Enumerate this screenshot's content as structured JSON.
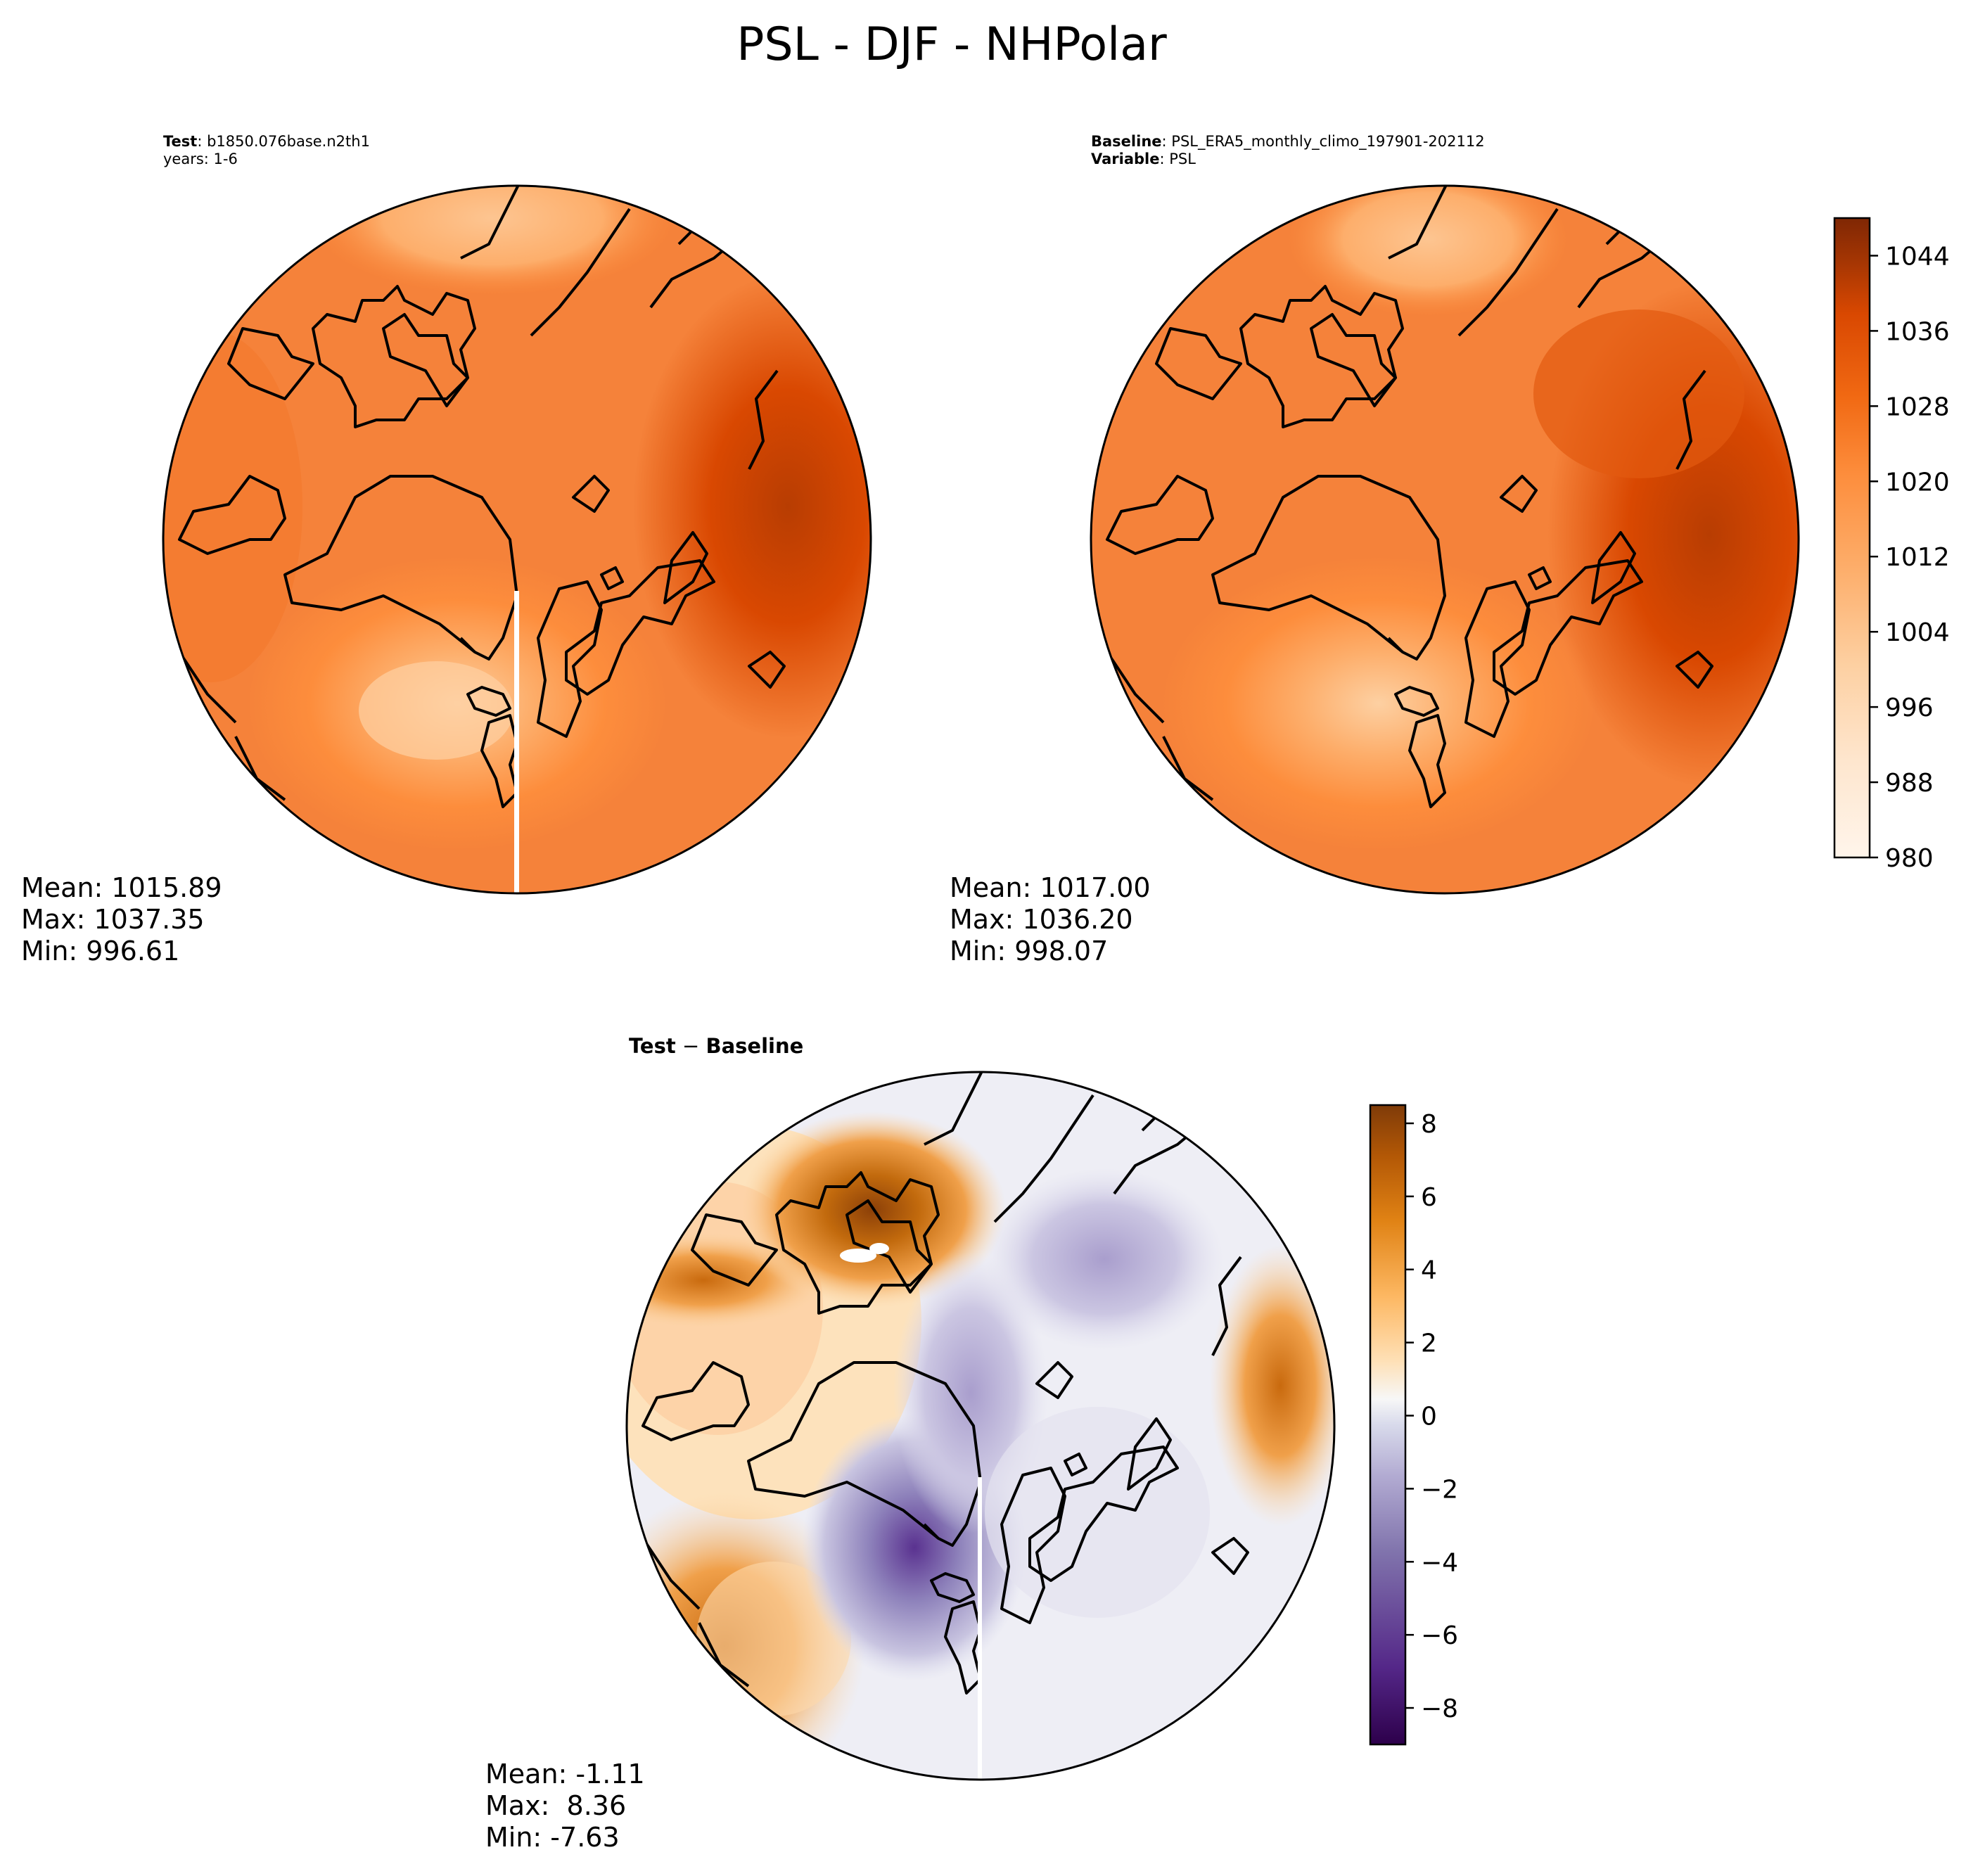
{
  "figure": {
    "title": "PSL - DJF - NHPolar"
  },
  "test_panel": {
    "label_key": "Test",
    "label_value": "b1850.076base.n2th1",
    "years": "years: 1-6",
    "mean": "Mean: 1015.89",
    "max": "Max: 1037.35",
    "min": "Min: 996.61"
  },
  "baseline_panel": {
    "label_key": "Baseline",
    "label_value": "PSL_ERA5_monthly_climo_197901-202112",
    "variable_key": "Variable",
    "variable_value": "PSL",
    "mean": "Mean: 1017.00",
    "max": "Max: 1036.20",
    "min": "Min: 998.07"
  },
  "diff_panel": {
    "title_left": "Test",
    "title_op": " − ",
    "title_right": "Baseline",
    "mean": "Mean: -1.11",
    "max": "Max:  8.36",
    "min": "Min: -7.63"
  },
  "colorbars": {
    "absolute": {
      "ticks": [
        "1044",
        "1036",
        "1028",
        "1020",
        "1012",
        "1004",
        "996",
        "988",
        "980"
      ],
      "range": [
        980,
        1048
      ]
    },
    "difference": {
      "ticks": [
        "8",
        "6",
        "4",
        "2",
        "0",
        "−2",
        "−4",
        "−6",
        "−8"
      ],
      "range": [
        -9,
        8.5
      ]
    }
  },
  "colors": {
    "orange_light": "#fdd0a2",
    "orange_mid": "#f5823a",
    "orange_dark": "#d94801",
    "purple_dark": "#3f007d",
    "brown_dark": "#7f3b08"
  }
}
